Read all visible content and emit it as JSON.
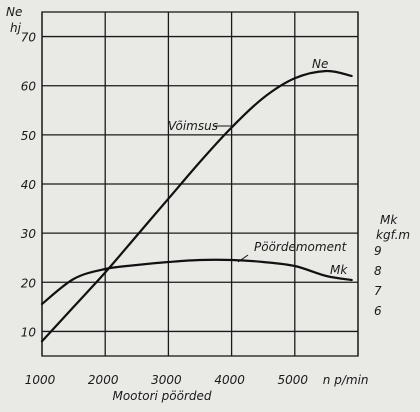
{
  "chart_data": {
    "type": "line",
    "x_axis": {
      "label": "Mootori pöörded",
      "unit": "n p/min",
      "range": [
        1000,
        6000
      ],
      "grid": [
        1000,
        2000,
        3000,
        4000,
        5000,
        6000
      ],
      "ticks": [
        {
          "value": 1000,
          "label": "1000"
        },
        {
          "value": 2000,
          "label": "2000"
        },
        {
          "value": 3000,
          "label": "3000"
        },
        {
          "value": 4000,
          "label": "4000"
        },
        {
          "value": 5000,
          "label": "5000"
        }
      ]
    },
    "y_left": {
      "symbol": "Ne",
      "unit": "hj",
      "range": [
        5,
        75
      ],
      "grid": [
        10,
        20,
        30,
        40,
        50,
        60,
        70
      ],
      "ticks": [
        "10",
        "20",
        "30",
        "40",
        "50",
        "60",
        "70"
      ]
    },
    "y_right": {
      "symbol": "Mk",
      "unit": "kgf.m",
      "range": [
        6,
        9
      ],
      "ticks": [
        "9",
        "8",
        "7",
        "6"
      ]
    },
    "series": [
      {
        "name": "Võimsus",
        "curve_label": "Ne",
        "axis": "left",
        "x": [
          1000,
          1500,
          2000,
          2500,
          3000,
          3500,
          4000,
          4500,
          5000,
          5500,
          5900
        ],
        "y": [
          8,
          15,
          22,
          29.5,
          37,
          44.5,
          51.5,
          57.5,
          61.5,
          63,
          62
        ]
      },
      {
        "name": "Pöördemoment",
        "curve_label": "Mk",
        "axis": "right",
        "x": [
          1000,
          1500,
          2000,
          2500,
          3000,
          3500,
          4000,
          4500,
          5000,
          5500,
          5900
        ],
        "y": [
          6.3,
          7.55,
          8.05,
          8.25,
          8.4,
          8.5,
          8.5,
          8.4,
          8.2,
          7.7,
          7.5
        ]
      }
    ],
    "grid": true
  }
}
